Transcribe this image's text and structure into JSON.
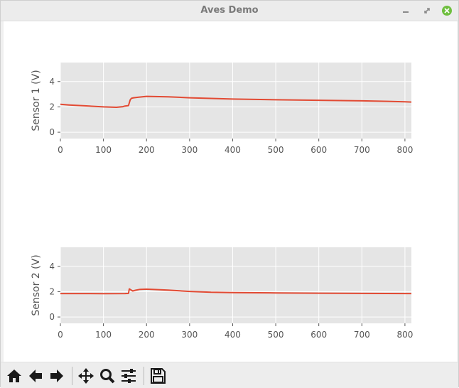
{
  "window": {
    "title": "Aves Demo"
  },
  "window_controls": [
    "minimize-icon",
    "maximize-icon",
    "close-icon"
  ],
  "toolbar": {
    "buttons": [
      "home-icon",
      "back-arrow-icon",
      "forward-arrow-icon",
      "pan-icon",
      "zoom-icon",
      "configure-subplots-icon",
      "save-icon"
    ]
  },
  "colors": {
    "line": "#e24a33",
    "axes_bg": "#e5e5e5",
    "grid": "#ffffff"
  },
  "chart_data": [
    {
      "type": "line",
      "title": "",
      "xlabel": "",
      "ylabel": "Sensor 1 (V)",
      "xlim": [
        0,
        815
      ],
      "ylim": [
        -0.5,
        5.5
      ],
      "xticks": [
        0,
        100,
        200,
        300,
        400,
        500,
        600,
        700,
        800
      ],
      "yticks": [
        0,
        2,
        4
      ],
      "grid": true,
      "series": [
        {
          "x": [
            0,
            20,
            60,
            100,
            130,
            145,
            150,
            158,
            162,
            165,
            170,
            180,
            200,
            250,
            300,
            400,
            500,
            600,
            700,
            760,
            800,
            815
          ],
          "y": [
            2.2,
            2.15,
            2.08,
            2.0,
            1.97,
            2.02,
            2.07,
            2.1,
            2.55,
            2.68,
            2.72,
            2.76,
            2.83,
            2.8,
            2.72,
            2.62,
            2.56,
            2.52,
            2.48,
            2.44,
            2.4,
            2.38
          ]
        }
      ]
    },
    {
      "type": "line",
      "title": "",
      "xlabel": "",
      "ylabel": "Sensor 2 (V)",
      "xlim": [
        0,
        815
      ],
      "ylim": [
        -0.5,
        5.5
      ],
      "xticks": [
        0,
        100,
        200,
        300,
        400,
        500,
        600,
        700,
        800
      ],
      "yticks": [
        0,
        2,
        4
      ],
      "grid": true,
      "series": [
        {
          "x": [
            0,
            50,
            100,
            150,
            158,
            160,
            163,
            168,
            175,
            185,
            200,
            250,
            300,
            350,
            400,
            500,
            600,
            700,
            815
          ],
          "y": [
            1.85,
            1.85,
            1.84,
            1.85,
            1.86,
            2.22,
            2.15,
            2.05,
            2.12,
            2.18,
            2.2,
            2.12,
            2.02,
            1.95,
            1.92,
            1.9,
            1.88,
            1.86,
            1.85
          ]
        }
      ]
    }
  ]
}
